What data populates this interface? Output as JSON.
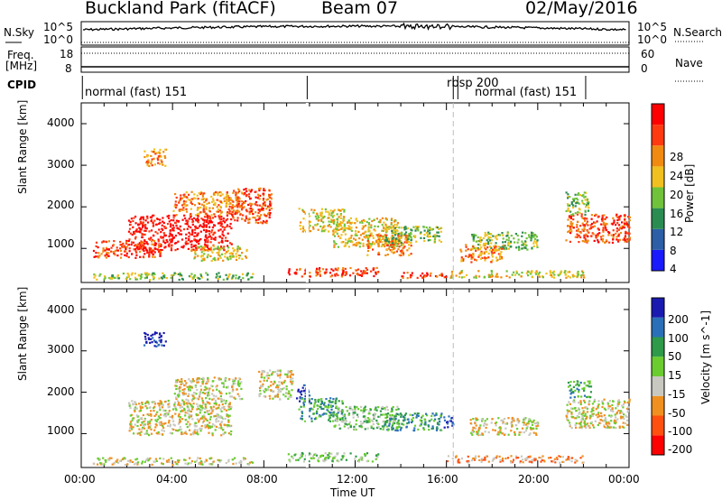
{
  "header": {
    "site": "Buckland Park (fitACF)",
    "beam": "Beam 07",
    "date": "02/May/2016"
  },
  "summary_panel": {
    "nsky_label": "N.Sky",
    "noise_scale_top": "10^5",
    "noise_scale_bottom": "10^0",
    "nsearch_label": "N.Search",
    "freq_label_1": "Freq.",
    "freq_label_2": "[MHz]",
    "freq_ticks": [
      "18",
      "8"
    ],
    "nave_label": "Nave",
    "nave_ticks": [
      "60",
      "0"
    ],
    "cpid_label": "CPID",
    "cpid_segments": [
      {
        "label": "normal (fast) 151",
        "start_hour": 0,
        "end_hour": 16.3
      },
      {
        "label": "rbsp 200",
        "start_hour": 16.3,
        "end_hour": 16.5
      },
      {
        "label": "normal (fast) 151",
        "start_hour": 16.5,
        "end_hour": 22.1
      }
    ]
  },
  "chart_data": [
    {
      "type": "heatmap",
      "panel": "power",
      "ylabel": "Slant Range [km]",
      "xlabel": "",
      "ylim": [
        180,
        4500
      ],
      "xlim": [
        0,
        24
      ],
      "yticks": [
        "1000",
        "2000",
        "3000",
        "4000"
      ],
      "ytick_values": [
        1000,
        2000,
        3000,
        4000
      ],
      "colorbar": {
        "label": "Power [dB]",
        "ticks": [
          "4",
          "8",
          "12",
          "16",
          "20",
          "24",
          "28"
        ],
        "colors": [
          "#1a1aff",
          "#2c5fa6",
          "#2b8c52",
          "#6fc23a",
          "#f0c020",
          "#f08a10",
          "#ff3a10",
          "#ff0000"
        ]
      }
    },
    {
      "type": "heatmap",
      "panel": "velocity",
      "ylabel": "Slant Range [km]",
      "xlabel": "Time UT",
      "ylim": [
        180,
        4500
      ],
      "xlim": [
        0,
        24
      ],
      "xticks": [
        "00:00",
        "04:00",
        "08:00",
        "12:00",
        "16:00",
        "20:00",
        "00:00"
      ],
      "yticks": [
        "1000",
        "2000",
        "3000",
        "4000"
      ],
      "ytick_values": [
        1000,
        2000,
        3000,
        4000
      ],
      "colorbar": {
        "label": "Velocity [m s^-1]",
        "ticks": [
          "200",
          "100",
          "50",
          "15",
          "-15",
          "-50",
          "-100",
          "-200"
        ],
        "colors": [
          "#1a1ab0",
          "#2a70b8",
          "#2e9a4a",
          "#6bcc30",
          "#c8c8c0",
          "#f09020",
          "#ff5010",
          "#ff0000"
        ]
      }
    }
  ]
}
